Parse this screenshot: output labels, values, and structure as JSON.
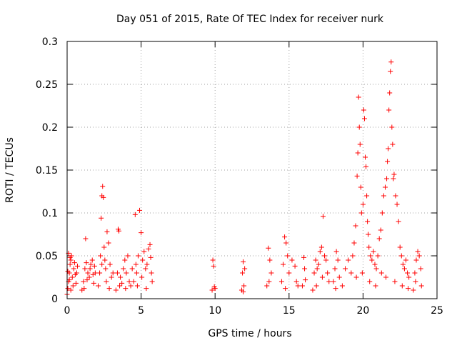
{
  "chart_data": {
    "type": "scatter",
    "title": "Day 051 of 2015, Rate Of TEC Index for receiver nurk",
    "xlabel": "GPS time / hours",
    "ylabel": "ROTI / TECUs",
    "xlim": [
      0,
      25
    ],
    "ylim": [
      0,
      0.3
    ],
    "x_ticks": [
      0,
      5,
      10,
      15,
      20,
      25
    ],
    "y_ticks": [
      0,
      0.05,
      0.1,
      0.15,
      0.2,
      0.25,
      0.3
    ],
    "x_tick_labels": [
      "0",
      "5",
      "10",
      "15",
      "20",
      "25"
    ],
    "y_tick_labels": [
      "0",
      "0.05",
      "0.1",
      "0.15",
      "0.2",
      "0.25",
      "0.3"
    ],
    "grid": true,
    "marker": "+",
    "marker_color": "#ff0000",
    "series": [
      {
        "points": [
          [
            0.0,
            0.005
          ],
          [
            0.05,
            0.012
          ],
          [
            0.1,
            0.02
          ],
          [
            0.15,
            0.03
          ],
          [
            0.2,
            0.04
          ],
          [
            0.25,
            0.045
          ],
          [
            0.3,
            0.05
          ],
          [
            0.1,
            0.053
          ],
          [
            0.2,
            0.048
          ],
          [
            0.35,
            0.025
          ],
          [
            0.4,
            0.015
          ],
          [
            0.45,
            0.035
          ],
          [
            0.5,
            0.042
          ],
          [
            0.55,
            0.028
          ],
          [
            0.6,
            0.018
          ],
          [
            0.65,
            0.03
          ],
          [
            0.7,
            0.038
          ],
          [
            0.05,
            0.032
          ],
          [
            0.15,
            0.022
          ],
          [
            0.25,
            0.01
          ],
          [
            1.0,
            0.01
          ],
          [
            1.1,
            0.02
          ],
          [
            1.2,
            0.035
          ],
          [
            1.25,
            0.07
          ],
          [
            1.3,
            0.042
          ],
          [
            1.4,
            0.03
          ],
          [
            1.5,
            0.025
          ],
          [
            1.6,
            0.04
          ],
          [
            1.7,
            0.045
          ],
          [
            1.8,
            0.018
          ],
          [
            1.9,
            0.03
          ],
          [
            1.15,
            0.012
          ],
          [
            1.35,
            0.022
          ],
          [
            1.55,
            0.035
          ],
          [
            1.75,
            0.028
          ],
          [
            1.85,
            0.038
          ],
          [
            2.1,
            0.015
          ],
          [
            2.2,
            0.03
          ],
          [
            2.25,
            0.05
          ],
          [
            2.3,
            0.094
          ],
          [
            2.35,
            0.12
          ],
          [
            2.4,
            0.131
          ],
          [
            2.45,
            0.118
          ],
          [
            2.5,
            0.06
          ],
          [
            2.55,
            0.045
          ],
          [
            2.6,
            0.035
          ],
          [
            2.7,
            0.078
          ],
          [
            2.8,
            0.065
          ],
          [
            2.9,
            0.04
          ],
          [
            3.0,
            0.025
          ],
          [
            3.1,
            0.03
          ],
          [
            2.35,
            0.04
          ],
          [
            2.65,
            0.02
          ],
          [
            2.85,
            0.012
          ],
          [
            3.3,
            0.01
          ],
          [
            3.4,
            0.03
          ],
          [
            3.45,
            0.081
          ],
          [
            3.5,
            0.079
          ],
          [
            3.6,
            0.025
          ],
          [
            3.7,
            0.018
          ],
          [
            3.8,
            0.035
          ],
          [
            3.9,
            0.045
          ],
          [
            4.0,
            0.03
          ],
          [
            4.1,
            0.05
          ],
          [
            4.2,
            0.02
          ],
          [
            4.3,
            0.015
          ],
          [
            4.4,
            0.035
          ],
          [
            3.55,
            0.015
          ],
          [
            3.95,
            0.012
          ],
          [
            4.5,
            0.02
          ],
          [
            4.6,
            0.098
          ],
          [
            4.65,
            0.04
          ],
          [
            4.7,
            0.03
          ],
          [
            4.8,
            0.05
          ],
          [
            4.9,
            0.103
          ],
          [
            5.0,
            0.077
          ],
          [
            5.1,
            0.045
          ],
          [
            5.2,
            0.055
          ],
          [
            5.3,
            0.035
          ],
          [
            5.4,
            0.04
          ],
          [
            5.5,
            0.058
          ],
          [
            5.6,
            0.063
          ],
          [
            5.7,
            0.03
          ],
          [
            5.75,
            0.02
          ],
          [
            4.75,
            0.015
          ],
          [
            5.05,
            0.025
          ],
          [
            5.35,
            0.012
          ],
          [
            5.65,
            0.048
          ],
          [
            9.8,
            0.01
          ],
          [
            9.85,
            0.045
          ],
          [
            9.9,
            0.038
          ],
          [
            9.95,
            0.014
          ],
          [
            10.0,
            0.012
          ],
          [
            11.8,
            0.01
          ],
          [
            11.85,
            0.03
          ],
          [
            11.9,
            0.043
          ],
          [
            11.95,
            0.015
          ],
          [
            12.0,
            0.035
          ],
          [
            11.9,
            0.008
          ],
          [
            13.5,
            0.015
          ],
          [
            13.6,
            0.059
          ],
          [
            13.7,
            0.045
          ],
          [
            13.8,
            0.03
          ],
          [
            13.65,
            0.02
          ],
          [
            14.5,
            0.02
          ],
          [
            14.6,
            0.04
          ],
          [
            14.7,
            0.072
          ],
          [
            14.8,
            0.065
          ],
          [
            14.9,
            0.05
          ],
          [
            15.0,
            0.03
          ],
          [
            15.2,
            0.045
          ],
          [
            15.4,
            0.038
          ],
          [
            15.5,
            0.02
          ],
          [
            15.6,
            0.015
          ],
          [
            14.75,
            0.012
          ],
          [
            15.9,
            0.015
          ],
          [
            16.0,
            0.048
          ],
          [
            16.05,
            0.035
          ],
          [
            16.1,
            0.022
          ],
          [
            16.6,
            0.01
          ],
          [
            16.7,
            0.03
          ],
          [
            16.8,
            0.045
          ],
          [
            16.9,
            0.035
          ],
          [
            17.0,
            0.04
          ],
          [
            17.1,
            0.055
          ],
          [
            17.2,
            0.06
          ],
          [
            17.3,
            0.096
          ],
          [
            17.4,
            0.05
          ],
          [
            17.5,
            0.045
          ],
          [
            17.6,
            0.03
          ],
          [
            17.7,
            0.02
          ],
          [
            16.85,
            0.015
          ],
          [
            17.25,
            0.025
          ],
          [
            18.0,
            0.02
          ],
          [
            18.1,
            0.035
          ],
          [
            18.2,
            0.055
          ],
          [
            18.3,
            0.045
          ],
          [
            18.4,
            0.025
          ],
          [
            18.15,
            0.012
          ],
          [
            18.6,
            0.015
          ],
          [
            18.8,
            0.035
          ],
          [
            19.0,
            0.045
          ],
          [
            19.2,
            0.03
          ],
          [
            19.3,
            0.05
          ],
          [
            19.4,
            0.065
          ],
          [
            19.5,
            0.085
          ],
          [
            19.6,
            0.143
          ],
          [
            19.65,
            0.17
          ],
          [
            19.7,
            0.235
          ],
          [
            19.75,
            0.2
          ],
          [
            19.8,
            0.18
          ],
          [
            19.85,
            0.13
          ],
          [
            19.9,
            0.1
          ],
          [
            20.0,
            0.11
          ],
          [
            20.05,
            0.22
          ],
          [
            20.1,
            0.21
          ],
          [
            20.15,
            0.165
          ],
          [
            20.2,
            0.154
          ],
          [
            20.25,
            0.12
          ],
          [
            20.3,
            0.09
          ],
          [
            20.35,
            0.075
          ],
          [
            20.4,
            0.06
          ],
          [
            20.5,
            0.05
          ],
          [
            20.6,
            0.045
          ],
          [
            20.7,
            0.055
          ],
          [
            20.8,
            0.04
          ],
          [
            20.9,
            0.035
          ],
          [
            21.0,
            0.05
          ],
          [
            21.1,
            0.07
          ],
          [
            21.2,
            0.08
          ],
          [
            21.3,
            0.1
          ],
          [
            21.4,
            0.12
          ],
          [
            21.5,
            0.13
          ],
          [
            21.6,
            0.14
          ],
          [
            21.65,
            0.16
          ],
          [
            21.7,
            0.175
          ],
          [
            21.75,
            0.22
          ],
          [
            21.8,
            0.24
          ],
          [
            21.85,
            0.265
          ],
          [
            21.9,
            0.276
          ],
          [
            21.95,
            0.2
          ],
          [
            22.0,
            0.18
          ],
          [
            22.05,
            0.14
          ],
          [
            22.1,
            0.145
          ],
          [
            22.2,
            0.12
          ],
          [
            22.3,
            0.11
          ],
          [
            22.4,
            0.09
          ],
          [
            22.5,
            0.06
          ],
          [
            22.6,
            0.05
          ],
          [
            22.7,
            0.04
          ],
          [
            22.8,
            0.035
          ],
          [
            22.9,
            0.045
          ],
          [
            23.0,
            0.03
          ],
          [
            23.1,
            0.025
          ],
          [
            19.55,
            0.025
          ],
          [
            19.95,
            0.03
          ],
          [
            20.45,
            0.02
          ],
          [
            20.85,
            0.015
          ],
          [
            21.25,
            0.03
          ],
          [
            21.55,
            0.025
          ],
          [
            22.15,
            0.02
          ],
          [
            22.65,
            0.015
          ],
          [
            23.05,
            0.012
          ],
          [
            23.4,
            0.01
          ],
          [
            23.5,
            0.03
          ],
          [
            23.6,
            0.045
          ],
          [
            23.7,
            0.055
          ],
          [
            23.8,
            0.05
          ],
          [
            23.9,
            0.035
          ],
          [
            23.95,
            0.015
          ],
          [
            23.55,
            0.02
          ]
        ]
      }
    ]
  }
}
